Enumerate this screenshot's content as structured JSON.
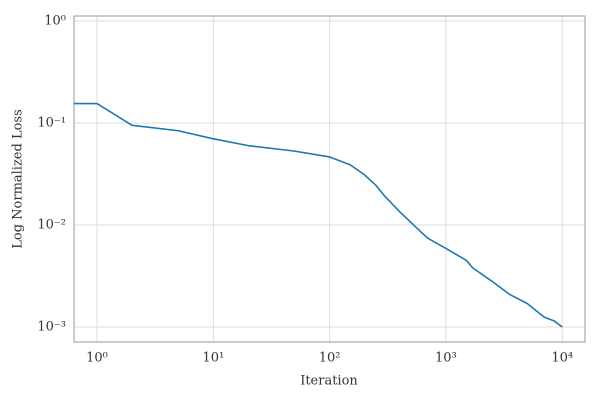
{
  "chart_data": {
    "type": "line",
    "xlabel": "Iteration",
    "ylabel": "Log Normalized Loss",
    "x": [
      0.634,
      1,
      2,
      5,
      10,
      20,
      50,
      100,
      150,
      200,
      250,
      300,
      400,
      600,
      700,
      1000,
      1500,
      1700,
      2500,
      3500,
      5000,
      7000,
      8500,
      10000
    ],
    "values": [
      0.155,
      0.155,
      0.095,
      0.084,
      0.07,
      0.06,
      0.053,
      0.0465,
      0.039,
      0.031,
      0.0245,
      0.019,
      0.0135,
      0.0087,
      0.0074,
      0.0059,
      0.0045,
      0.0038,
      0.0028,
      0.0021,
      0.0017,
      0.00125,
      0.00115,
      0.001
    ],
    "color": "#1f77b4",
    "xscale": "log",
    "yscale": "log",
    "xlim": [
      0.634,
      15700
    ],
    "ylim": [
      0.000713,
      1.12
    ],
    "xticks": [
      {
        "value": 1,
        "label": "10⁰"
      },
      {
        "value": 10,
        "label": "10¹"
      },
      {
        "value": 100,
        "label": "10²"
      },
      {
        "value": 1000,
        "label": "10³"
      },
      {
        "value": 10000,
        "label": "10⁴"
      }
    ],
    "yticks": [
      {
        "value": 0.001,
        "label": "10⁻³"
      },
      {
        "value": 0.01,
        "label": "10⁻²"
      },
      {
        "value": 0.1,
        "label": "10⁻¹"
      },
      {
        "value": 1,
        "label": "10⁰"
      }
    ],
    "grid": true
  }
}
